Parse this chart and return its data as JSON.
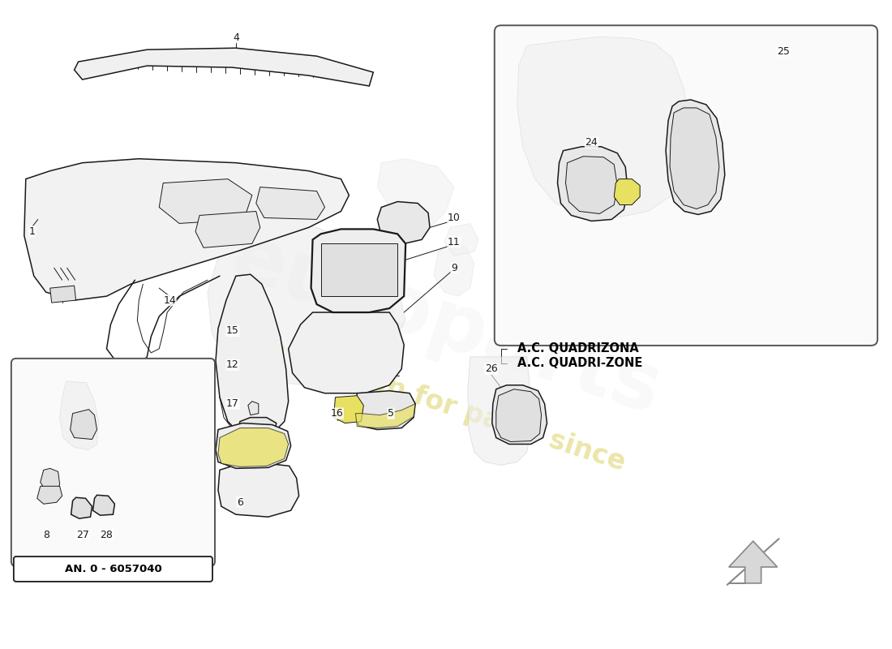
{
  "bg_color": "#ffffff",
  "line_color": "#1a1a1a",
  "light_line_color": "#aaaaaa",
  "highlight_yellow": "#d4c830",
  "highlight_yellow2": "#e8e060",
  "box_face": "#f5f5f5",
  "watermark_color": "#d4c840",
  "watermark_alpha": 0.45,
  "number_fontsize": 9,
  "label_ac_fontsize": 10.5,
  "label_bottom": "AN. 0 - 6057040",
  "label_ac_line1": "A.C. QUADRIZONA",
  "label_ac_line2": "A.C. QUADRI-ZONE"
}
